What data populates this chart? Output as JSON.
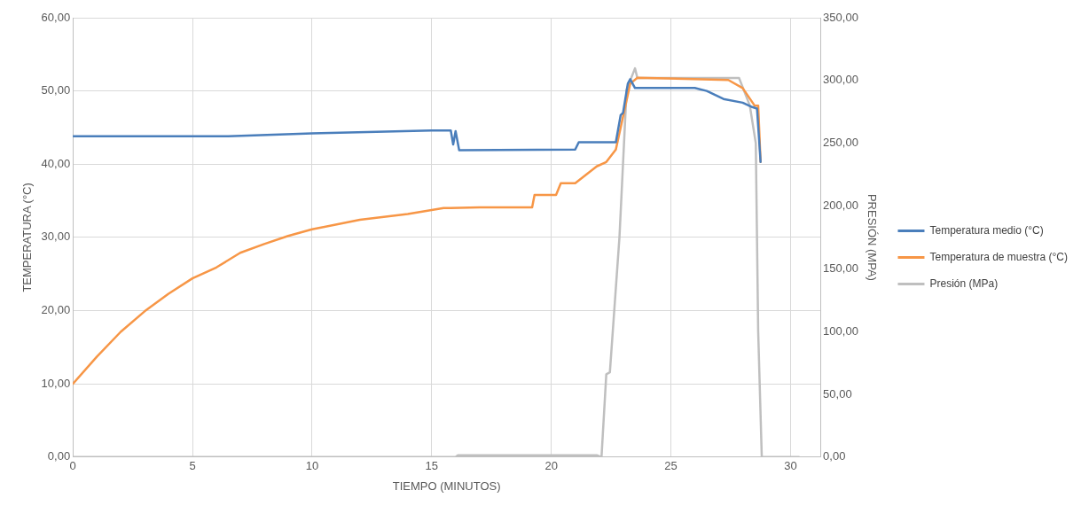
{
  "chart_data": {
    "type": "line",
    "xlabel": "TIEMPO (MINUTOS)",
    "ylabel": "TEMPERATURA (°C)",
    "y2label": "PRESIÓN (MPA)",
    "xlim": [
      0,
      31.25
    ],
    "xticks": [
      0,
      5,
      10,
      15,
      20,
      25,
      30
    ],
    "ylim": [
      0,
      60
    ],
    "yticks": [
      {
        "value": 0,
        "label": "0,00"
      },
      {
        "value": 10,
        "label": "10,00"
      },
      {
        "value": 20,
        "label": "20,00"
      },
      {
        "value": 30,
        "label": "30,00"
      },
      {
        "value": 40,
        "label": "40,00"
      },
      {
        "value": 50,
        "label": "50,00"
      },
      {
        "value": 60,
        "label": "60,00"
      }
    ],
    "y2lim": [
      0,
      350
    ],
    "y2ticks": [
      {
        "value": 0,
        "label": "0,00"
      },
      {
        "value": 50,
        "label": "50,00"
      },
      {
        "value": 100,
        "label": "100,00"
      },
      {
        "value": 150,
        "label": "150,00"
      },
      {
        "value": 200,
        "label": "200,00"
      },
      {
        "value": 250,
        "label": "250,00"
      },
      {
        "value": 300,
        "label": "300,00"
      },
      {
        "value": 350,
        "label": "350,00"
      }
    ],
    "grid": true,
    "legend": "right",
    "marker": "none",
    "line_style": "solid",
    "series": [
      {
        "name": "Temperatura medio (°C)",
        "color": "#4a7ebb",
        "x": [
          0,
          6.5,
          10,
          15,
          15.8,
          15.9,
          16.0,
          16.15,
          21.0,
          21.15,
          22.7,
          22.9,
          23.0,
          23.2,
          23.3,
          23.5,
          26.0,
          26.5,
          27.2,
          28.0,
          28.4,
          28.6,
          28.75
        ],
        "values": [
          43.8,
          43.8,
          44.2,
          44.6,
          44.6,
          42.7,
          44.5,
          41.9,
          42.0,
          43.0,
          43.0,
          46.7,
          47.0,
          51.0,
          51.6,
          50.4,
          50.4,
          50.0,
          48.9,
          48.4,
          47.8,
          47.6,
          40.3
        ]
      },
      {
        "name": "Temperatura de muestra (°C)",
        "color": "#f79646",
        "x": [
          0,
          1,
          2,
          3,
          4,
          5,
          6,
          7,
          8,
          9,
          10,
          12,
          14,
          15.5,
          17,
          19.2,
          19.3,
          20.2,
          20.4,
          21.0,
          21.9,
          22.3,
          22.7,
          22.9,
          23.3,
          23.6,
          27.4,
          28.0,
          28.5,
          28.65,
          28.75
        ],
        "values": [
          10.0,
          13.7,
          17.1,
          19.9,
          22.3,
          24.4,
          25.9,
          27.9,
          29.1,
          30.2,
          31.1,
          32.4,
          33.2,
          34.0,
          34.1,
          34.1,
          35.8,
          35.8,
          37.4,
          37.4,
          39.7,
          40.3,
          42.0,
          45.0,
          51.0,
          51.8,
          51.5,
          50.4,
          48.0,
          48.0,
          40.3
        ]
      },
      {
        "name": "Presión (MPa)",
        "color": "#bfbfbf",
        "axis": "y2",
        "x": [
          0,
          16.0,
          16.1,
          21.9,
          22.1,
          22.3,
          22.45,
          22.85,
          23.15,
          23.5,
          23.6,
          27.85,
          28.3,
          28.55,
          28.65,
          28.8,
          30.35
        ],
        "values": [
          0,
          0,
          1.5,
          1.5,
          0,
          66,
          67.5,
          175,
          292.7,
          309.7,
          302,
          302,
          280,
          250,
          100,
          0,
          0
        ]
      }
    ]
  }
}
